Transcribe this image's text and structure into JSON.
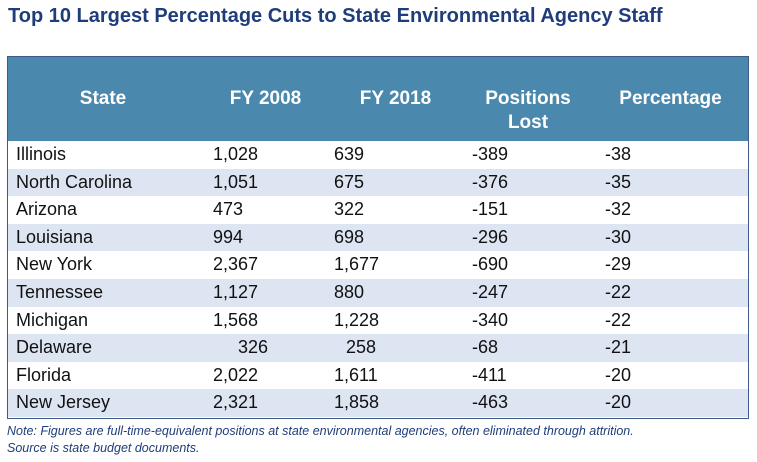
{
  "title": "Top 10 Largest Percentage Cuts to State Environmental Agency Staff",
  "columns": {
    "state": "State",
    "fy2008": "FY 2008",
    "fy2018": "FY 2018",
    "positions_lost_1": "Positions",
    "positions_lost_2": "Lost",
    "percentage": "Percentage"
  },
  "rows": [
    {
      "state": "Illinois",
      "fy2008": "1,028",
      "fy2018": "639",
      "lost": "-389",
      "pct": "-38"
    },
    {
      "state": "North Carolina",
      "fy2008": "1,051",
      "fy2018": "675",
      "lost": "-376",
      "pct": "-35"
    },
    {
      "state": "Arizona",
      "fy2008": "473",
      "fy2018": "322",
      "lost": "-151",
      "pct": "-32"
    },
    {
      "state": "Louisiana",
      "fy2008": "994",
      "fy2018": "698",
      "lost": "-296",
      "pct": "-30"
    },
    {
      "state": "New York",
      "fy2008": "2,367",
      "fy2018": "1,677",
      "lost": "-690",
      "pct": "-29"
    },
    {
      "state": "Tennessee",
      "fy2008": "1,127",
      "fy2018": "880",
      "lost": "-247",
      "pct": "-22"
    },
    {
      "state": "Michigan",
      "fy2008": "1,568",
      "fy2018": "1,228",
      "lost": "-340",
      "pct": "-22"
    },
    {
      "state": "Delaware",
      "fy2008": "326",
      "fy2018": "258",
      "lost": "-68",
      "pct": "-21"
    },
    {
      "state": "Florida",
      "fy2008": "2,022",
      "fy2018": "1,611",
      "lost": "-411",
      "pct": "-20"
    },
    {
      "state": "New Jersey",
      "fy2008": "2,321",
      "fy2018": "1,858",
      "lost": "-463",
      "pct": "-20"
    }
  ],
  "note_line1": "Note: Figures are full-time-equivalent positions at state environmental agencies, often eliminated through attrition.",
  "note_line2": "Source is state budget documents."
}
